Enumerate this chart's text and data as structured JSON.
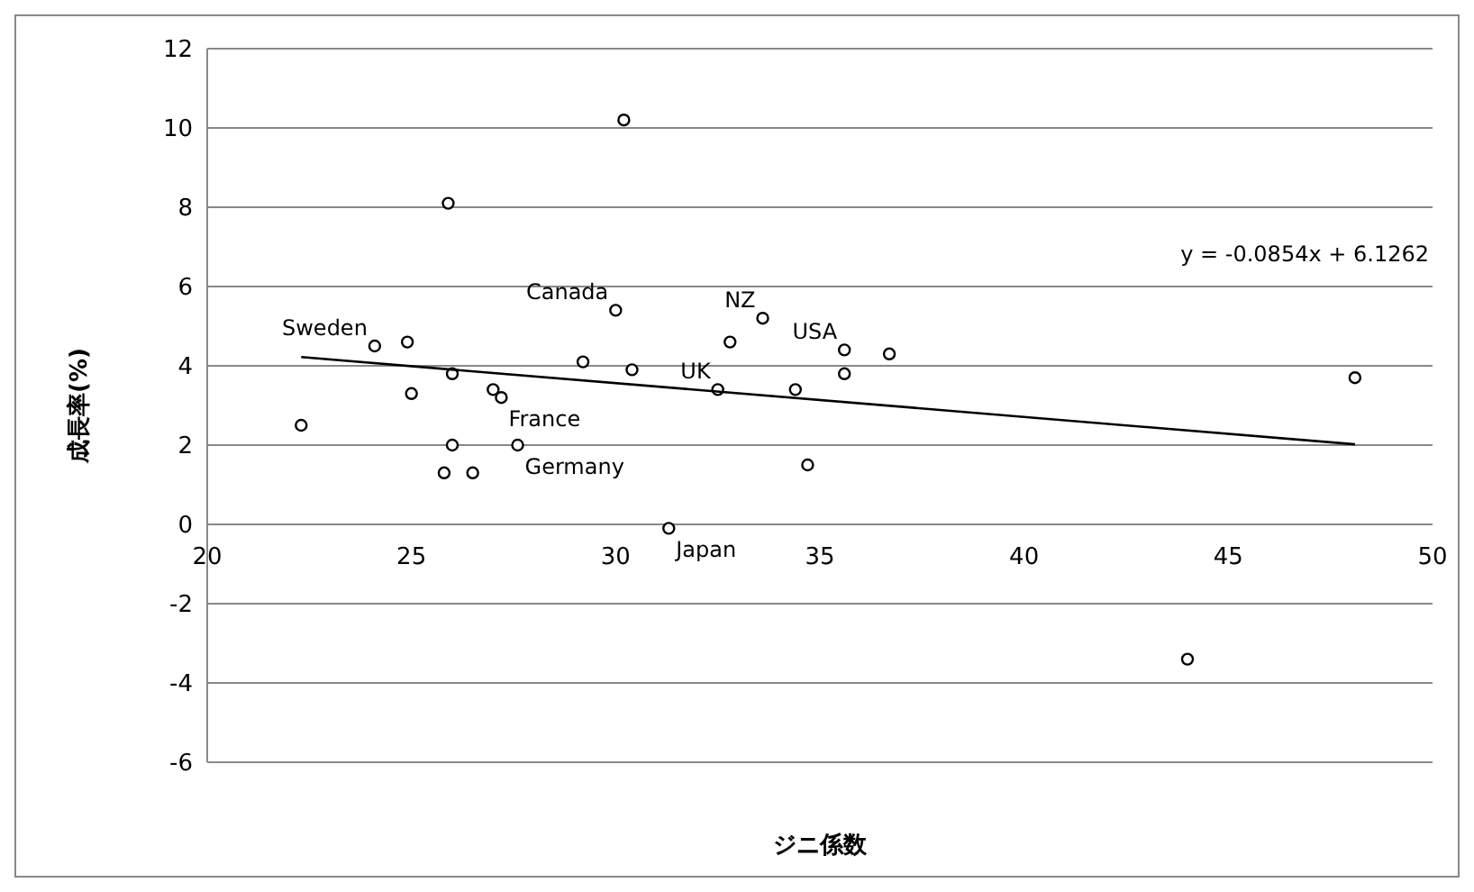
{
  "chart_data": {
    "type": "scatter",
    "xlabel": "ジニ係数",
    "ylabel": "成長率(%)",
    "xlim": [
      20,
      50
    ],
    "xticks": [
      20,
      25,
      30,
      35,
      40,
      45,
      50
    ],
    "ylim": [
      -6,
      12
    ],
    "yticks": [
      -6,
      -4,
      -2,
      0,
      2,
      4,
      6,
      8,
      10,
      12
    ],
    "grid": "y",
    "marker": "circle",
    "series": [
      {
        "color": "#000000",
        "x": [
          22.3,
          24.1,
          24.9,
          25.0,
          25.9,
          26.0,
          26.0,
          25.8,
          26.5,
          27.0,
          27.2,
          27.6,
          29.2,
          30.2,
          30.0,
          30.4,
          31.3,
          32.5,
          32.8,
          33.6,
          34.4,
          34.7,
          35.6,
          35.6,
          36.7,
          44.0,
          48.1
        ],
        "values": [
          2.5,
          4.5,
          4.6,
          3.3,
          8.1,
          3.8,
          2.0,
          1.3,
          1.3,
          3.4,
          3.2,
          2.0,
          4.1,
          10.2,
          5.4,
          3.9,
          -0.1,
          3.4,
          4.6,
          5.2,
          3.4,
          1.5,
          3.8,
          4.4,
          4.3,
          -3.4,
          3.7
        ]
      },
      {
        "type": "line",
        "color": "#000000",
        "marker": "none",
        "line_style": "solid",
        "x": [
          22.3,
          48.1
        ],
        "values": [
          4.22,
          2.02
        ]
      }
    ],
    "annotations": [
      {
        "text": "Sweden",
        "x": 24.1,
        "y": 4.5
      },
      {
        "text": "Canada",
        "x": 30.0,
        "y": 5.4
      },
      {
        "text": "NZ",
        "x": 33.6,
        "y": 5.2
      },
      {
        "text": "USA",
        "x": 35.6,
        "y": 4.4
      },
      {
        "text": "France",
        "x": 27.2,
        "y": 3.2
      },
      {
        "text": "UK",
        "x": 32.5,
        "y": 3.4
      },
      {
        "text": "Germany",
        "x": 27.6,
        "y": 2.0
      },
      {
        "text": "Japan",
        "x": 31.3,
        "y": -0.1
      },
      "y = -0.0854x + 6.1262"
    ]
  }
}
